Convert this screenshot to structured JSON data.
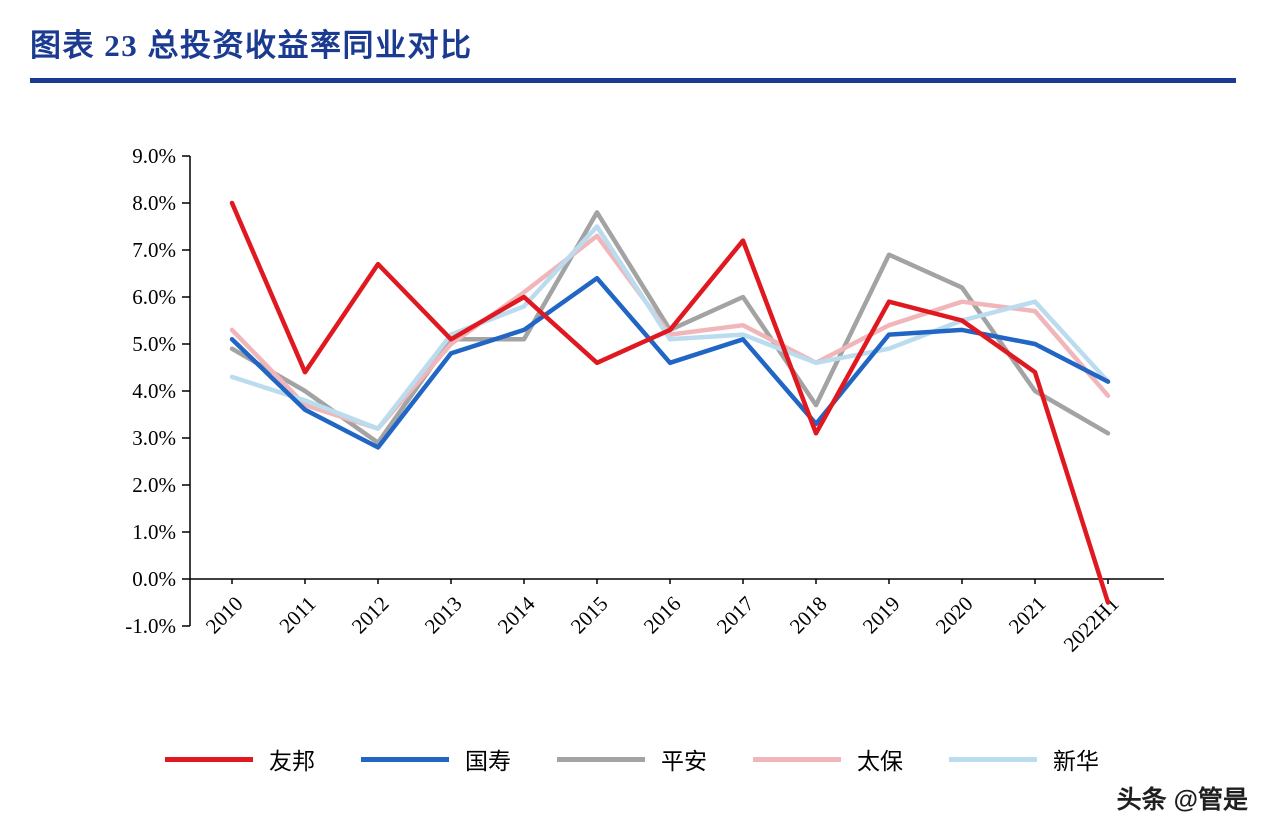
{
  "page": {
    "title": "图表 23  总投资收益率同业对比",
    "title_color": "#1b3a92",
    "watermark": "头条 @管是"
  },
  "chart_data": {
    "type": "line",
    "title": "总投资收益率同业对比",
    "categories": [
      "2010",
      "2011",
      "2012",
      "2013",
      "2014",
      "2015",
      "2016",
      "2017",
      "2018",
      "2019",
      "2020",
      "2021",
      "2022H1"
    ],
    "series": [
      {
        "name": "友邦",
        "color": "#e01820",
        "values": [
          8.0,
          4.4,
          6.7,
          5.1,
          6.0,
          4.6,
          5.3,
          7.2,
          3.1,
          5.9,
          5.5,
          4.4,
          -0.5
        ]
      },
      {
        "name": "国寿",
        "color": "#2166c4",
        "values": [
          5.1,
          3.6,
          2.8,
          4.8,
          5.3,
          6.4,
          4.6,
          5.1,
          3.3,
          5.2,
          5.3,
          5.0,
          4.2
        ]
      },
      {
        "name": "平安",
        "color": "#a3a3a3",
        "values": [
          4.9,
          4.0,
          2.9,
          5.1,
          5.1,
          7.8,
          5.3,
          6.0,
          3.7,
          6.9,
          6.2,
          4.0,
          3.1
        ]
      },
      {
        "name": "太保",
        "color": "#f0b6ba",
        "values": [
          5.3,
          3.7,
          3.2,
          5.0,
          6.1,
          7.3,
          5.2,
          5.4,
          4.6,
          5.4,
          5.9,
          5.7,
          3.9
        ]
      },
      {
        "name": "新华",
        "color": "#badcee",
        "values": [
          4.3,
          3.8,
          3.2,
          5.2,
          5.8,
          7.5,
          5.1,
          5.2,
          4.6,
          4.9,
          5.5,
          5.9,
          4.2
        ]
      }
    ],
    "ylim": [
      -1.0,
      9.0
    ],
    "ytick_step": 1.0,
    "ytick_labels": [
      "9.0%",
      "8.0%",
      "7.0%",
      "6.0%",
      "5.0%",
      "4.0%",
      "3.0%",
      "2.0%",
      "1.0%",
      "0.0%",
      "-1.0%"
    ],
    "ytick_format": "percent1",
    "xlabel": "",
    "ylabel": "",
    "grid": false,
    "legend_position": "bottom",
    "x_label_rotation_deg": -45,
    "axis_color": "#000000"
  }
}
